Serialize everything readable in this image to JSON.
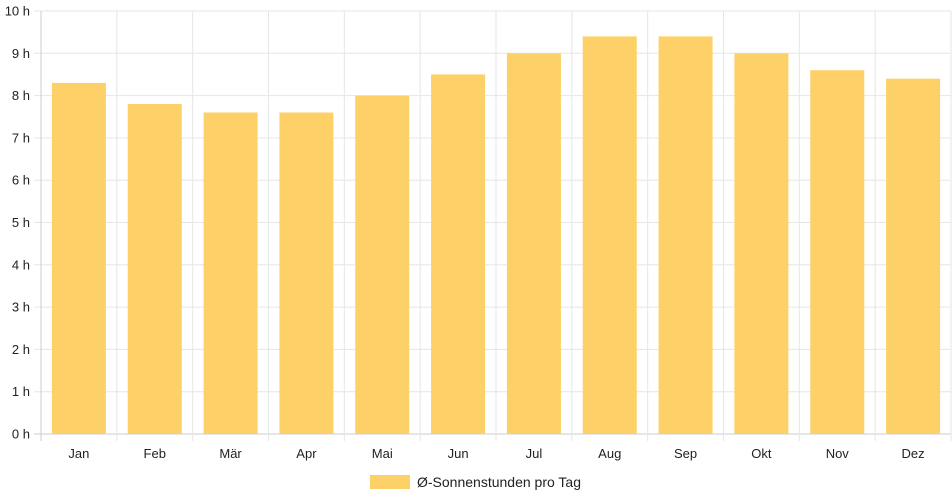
{
  "chart_data": {
    "type": "bar",
    "categories": [
      "Jan",
      "Feb",
      "Mär",
      "Apr",
      "Mai",
      "Jun",
      "Jul",
      "Aug",
      "Sep",
      "Okt",
      "Nov",
      "Dez"
    ],
    "series": [
      {
        "name": "Ø-Sonnenstunden pro Tag",
        "color": "#fdd068",
        "values": [
          8.3,
          7.8,
          7.6,
          7.6,
          8.0,
          8.5,
          9.0,
          9.4,
          9.4,
          9.0,
          8.6,
          8.4
        ]
      }
    ],
    "y_ticks": [
      "0 h",
      "1 h",
      "2 h",
      "3 h",
      "4 h",
      "5 h",
      "6 h",
      "7 h",
      "8 h",
      "9 h",
      "10 h"
    ],
    "ylim": [
      0,
      10
    ],
    "grid": true,
    "legend_position": "bottom-center"
  }
}
